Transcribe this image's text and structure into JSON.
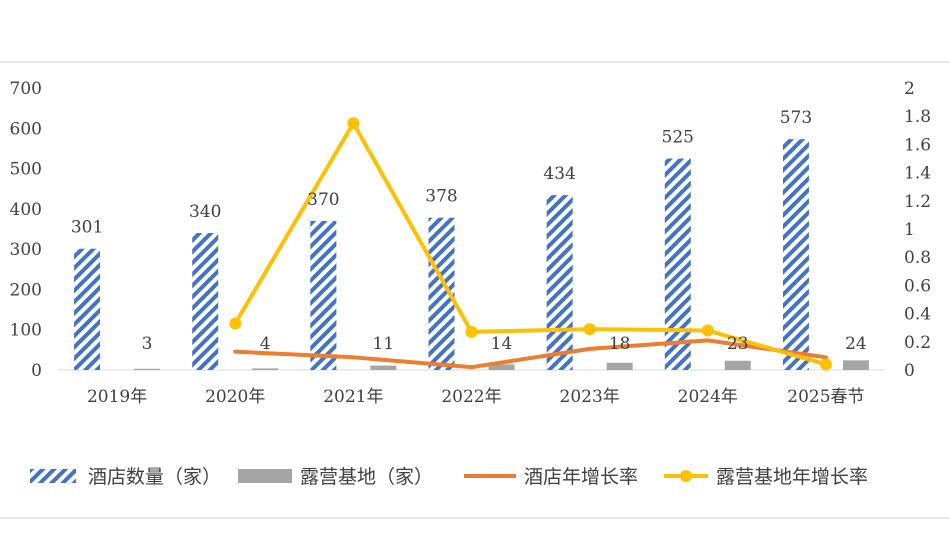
{
  "chart_data": {
    "type": "bar",
    "categories": [
      "2019年",
      "2020年",
      "2021年",
      "2022年",
      "2023年",
      "2024年",
      "2025春节"
    ],
    "series": [
      {
        "name": "酒店数量（家）",
        "type": "bar",
        "axis": "left",
        "pattern": "diagonal-stripes",
        "color": "#4472C4",
        "values": [
          301,
          340,
          370,
          378,
          434,
          525,
          573
        ]
      },
      {
        "name": "露营基地（家）",
        "type": "bar",
        "axis": "left",
        "color": "#A5A5A5",
        "values": [
          3,
          4,
          11,
          14,
          18,
          23,
          24
        ]
      },
      {
        "name": "酒店年增长率",
        "type": "line",
        "axis": "right",
        "color": "#ED7D31",
        "values": [
          null,
          0.13,
          0.09,
          0.02,
          0.15,
          0.21,
          0.09
        ]
      },
      {
        "name": "露营基地年增长率",
        "type": "line",
        "axis": "right",
        "color": "#FFC000",
        "markers": true,
        "values": [
          null,
          0.33,
          1.75,
          0.27,
          0.29,
          0.28,
          0.04
        ]
      }
    ],
    "y_left": {
      "min": 0,
      "max": 700,
      "step": 100,
      "ticks": [
        "0",
        "100",
        "200",
        "300",
        "400",
        "500",
        "600",
        "700"
      ]
    },
    "y_right": {
      "min": 0,
      "max": 2,
      "step": 0.2,
      "ticks": [
        "0",
        "0.2",
        "0.4",
        "0.6",
        "0.8",
        "1",
        "1.2",
        "1.4",
        "1.6",
        "1.8",
        "2"
      ]
    },
    "grid": false,
    "legend_position": "bottom"
  }
}
